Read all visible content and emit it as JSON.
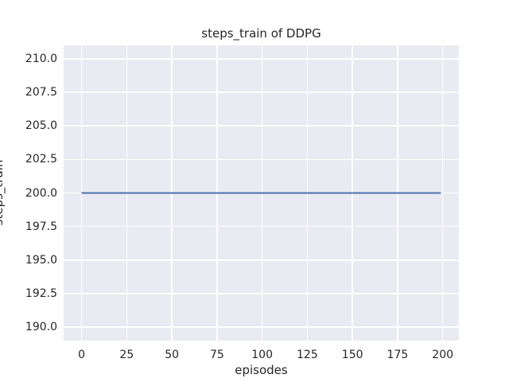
{
  "chart_data": {
    "type": "line",
    "title": "steps_train of DDPG",
    "xlabel": "episodes",
    "ylabel": "steps_train",
    "xlim": [
      -9.95,
      208.95
    ],
    "ylim": [
      189,
      211
    ],
    "x_ticks": [
      0,
      25,
      50,
      75,
      100,
      125,
      150,
      175,
      200
    ],
    "x_tick_labels": [
      "0",
      "25",
      "50",
      "75",
      "100",
      "125",
      "150",
      "175",
      "200"
    ],
    "y_ticks": [
      190,
      192.5,
      195,
      197.5,
      200,
      202.5,
      205,
      207.5,
      210
    ],
    "y_tick_labels": [
      "190.0",
      "192.5",
      "195.0",
      "197.5",
      "200.0",
      "202.5",
      "205.0",
      "207.5",
      "210.0"
    ],
    "grid": true,
    "legend": false,
    "series": [
      {
        "name": "steps_train",
        "color": "#4C72B0",
        "line_width": 2,
        "x": [
          0,
          199
        ],
        "y": [
          200,
          200
        ],
        "description": "constant value 200 for every episode from 0 to 199"
      }
    ],
    "style": {
      "figure_background": "#FFFFFF",
      "plot_background": "#EAEAF2",
      "grid_color": "#FFFFFF",
      "text_color": "#262626"
    }
  }
}
